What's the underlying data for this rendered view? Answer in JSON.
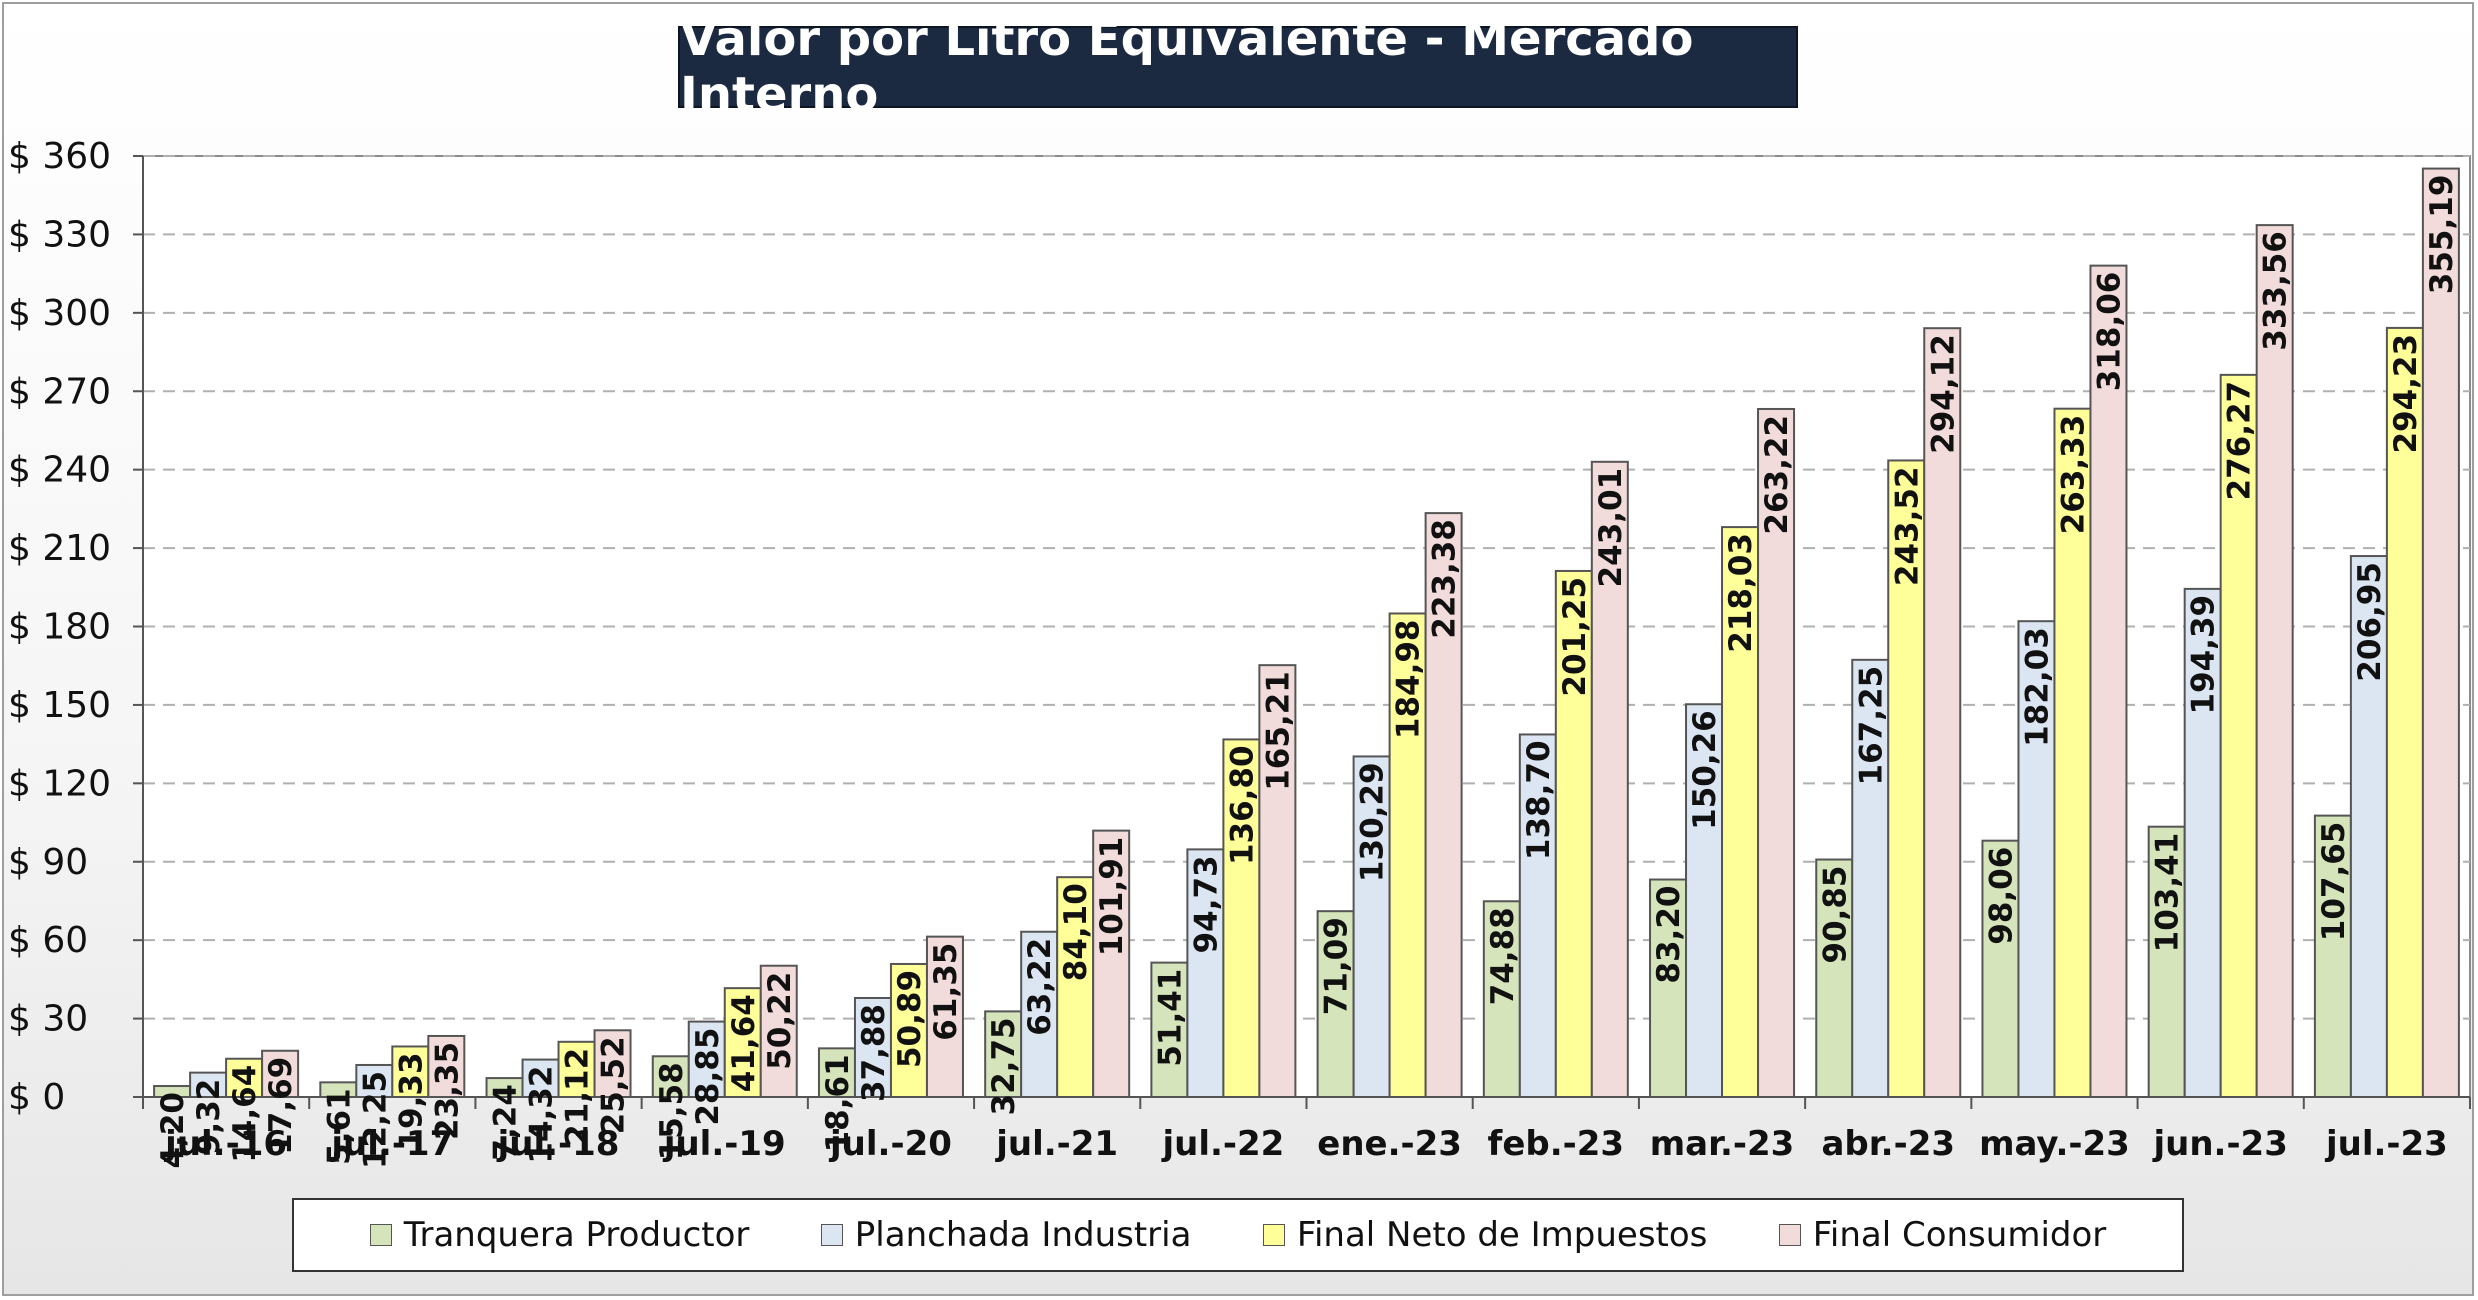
{
  "chart_data": {
    "type": "bar",
    "title": "Valor por Litro Equivalente - Mercado Interno",
    "categories": [
      "jul.-16",
      "jul.-17",
      "jul.-18",
      "jul.-19",
      "jul.-20",
      "jul.-21",
      "jul.-22",
      "ene.-23",
      "feb.-23",
      "mar.-23",
      "abr.-23",
      "may.-23",
      "jun.-23",
      "jul.-23"
    ],
    "series": [
      {
        "name": "Tranquera Productor",
        "color": "#d6e4bc",
        "values": [
          4.2,
          5.61,
          7.24,
          15.58,
          18.61,
          32.75,
          51.41,
          71.09,
          74.88,
          83.2,
          90.85,
          98.06,
          103.41,
          107.65
        ],
        "labels": [
          "4,20",
          "5,61",
          "7,24",
          "15,58",
          "18,61",
          "32,75",
          "51,41",
          "71,09",
          "74,88",
          "83,20",
          "90,85",
          "98,06",
          "103,41",
          "107,65"
        ]
      },
      {
        "name": "Planchada Industria",
        "color": "#dce6f2",
        "values": [
          9.32,
          12.25,
          14.32,
          28.85,
          37.88,
          63.22,
          94.73,
          130.29,
          138.7,
          150.26,
          167.25,
          182.03,
          194.39,
          206.95
        ],
        "labels": [
          "9,32",
          "12,25",
          "14,32",
          "28,85",
          "37,88",
          "63,22",
          "94,73",
          "130,29",
          "138,70",
          "150,26",
          "167,25",
          "182,03",
          "194,39",
          "206,95"
        ]
      },
      {
        "name": "Final Neto de Impuestos",
        "color": "#ffff99",
        "values": [
          14.64,
          19.33,
          21.12,
          41.64,
          50.89,
          84.1,
          136.8,
          184.98,
          201.25,
          218.03,
          243.52,
          263.33,
          276.27,
          294.23
        ],
        "labels": [
          "14,64",
          "19,33",
          "21,12",
          "41,64",
          "50,89",
          "84,10",
          "136,80",
          "184,98",
          "201,25",
          "218,03",
          "243,52",
          "263,33",
          "276,27",
          "294,23"
        ]
      },
      {
        "name": "Final Consumidor",
        "color": "#f2dcdb",
        "values": [
          17.69,
          23.35,
          25.52,
          50.22,
          61.35,
          101.91,
          165.21,
          223.38,
          243.01,
          263.22,
          294.12,
          318.06,
          333.56,
          355.19
        ],
        "labels": [
          "17,69",
          "23,35",
          "25,52",
          "50,22",
          "61,35",
          "101,91",
          "165,21",
          "223,38",
          "243,01",
          "263,22",
          "294,12",
          "318,06",
          "333,56",
          "355,19"
        ]
      }
    ],
    "ylim": [
      0,
      360
    ],
    "yticks": [
      0,
      30,
      60,
      90,
      120,
      150,
      180,
      210,
      240,
      270,
      300,
      330,
      360
    ],
    "ytick_labels": [
      "$ 0",
      "$ 30",
      "$ 60",
      "$ 90",
      "$ 120",
      "$ 150",
      "$ 180",
      "$ 210",
      "$ 240",
      "$ 270",
      "$ 300",
      "$ 330",
      "$ 360"
    ],
    "grid": true,
    "legend_position": "bottom",
    "title_colors": {
      "background": "#1b2a41",
      "text": "#ffffff"
    }
  }
}
